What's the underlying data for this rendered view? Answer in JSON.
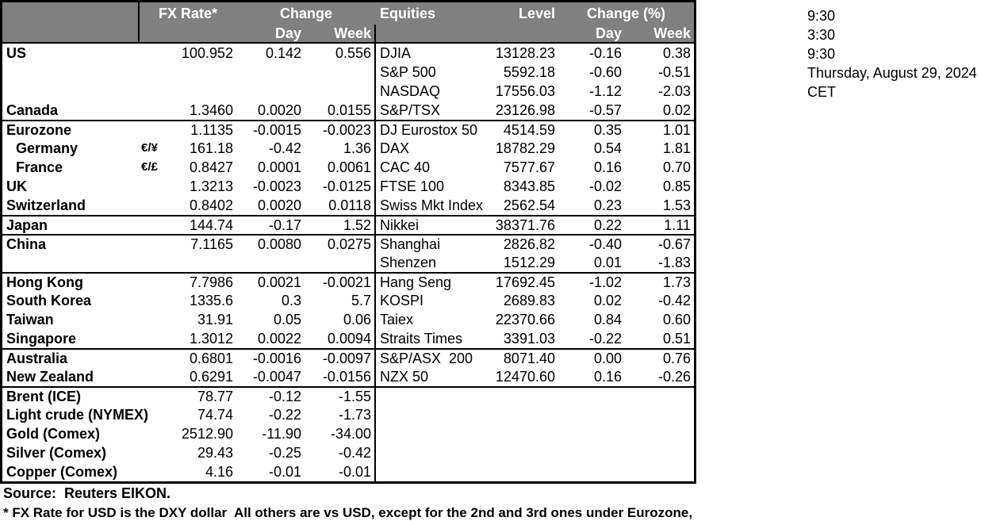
{
  "header": {
    "fx_rate": "FX Rate*",
    "change": "Change",
    "day": "Day",
    "week": "Week",
    "equities": "Equities",
    "level": "Level",
    "change_pct": "Change (%)"
  },
  "rows": [
    {
      "name": "US",
      "indent": false,
      "gs": false,
      "pair": "",
      "fx": "100.952",
      "fx_day": "0.142",
      "fx_week": "0.556",
      "eq": "DJIA",
      "level": "13128.23",
      "eq_day": "-0.16",
      "eq_week": "0.38"
    },
    {
      "name": "",
      "indent": false,
      "gs": false,
      "pair": "",
      "fx": "",
      "fx_day": "",
      "fx_week": "",
      "eq": "S&P 500",
      "level": "5592.18",
      "eq_day": "-0.60",
      "eq_week": "-0.51"
    },
    {
      "name": "",
      "indent": false,
      "gs": false,
      "pair": "",
      "fx": "",
      "fx_day": "",
      "fx_week": "",
      "eq": "NASDAQ",
      "level": "17556.03",
      "eq_day": "-1.12",
      "eq_week": "-2.03"
    },
    {
      "name": "Canada",
      "indent": false,
      "gs": false,
      "pair": "",
      "fx": "1.3460",
      "fx_day": "0.0020",
      "fx_week": "0.0155",
      "eq": "S&P/TSX",
      "level": "23126.98",
      "eq_day": "-0.57",
      "eq_week": "0.02"
    },
    {
      "name": "Eurozone",
      "indent": false,
      "gs": true,
      "pair": "",
      "fx": "1.1135",
      "fx_day": "-0.0015",
      "fx_week": "-0.0023",
      "eq": "DJ Eurostox 50",
      "level": "4514.59",
      "eq_day": "0.35",
      "eq_week": "1.01"
    },
    {
      "name": "Germany",
      "indent": true,
      "gs": false,
      "pair": "€/¥",
      "fx": "161.18",
      "fx_day": "-0.42",
      "fx_week": "1.36",
      "eq": "DAX",
      "level": "18782.29",
      "eq_day": "0.54",
      "eq_week": "1.81"
    },
    {
      "name": "France",
      "indent": true,
      "gs": false,
      "pair": "€/£",
      "fx": "0.8427",
      "fx_day": "0.0001",
      "fx_week": "0.0061",
      "eq": "CAC 40",
      "level": "7577.67",
      "eq_day": "0.16",
      "eq_week": "0.70"
    },
    {
      "name": "UK",
      "indent": false,
      "gs": false,
      "pair": "",
      "fx": "1.3213",
      "fx_day": "-0.0023",
      "fx_week": "-0.0125",
      "eq": "FTSE 100",
      "level": "8343.85",
      "eq_day": "-0.02",
      "eq_week": "0.85"
    },
    {
      "name": "Switzerland",
      "indent": false,
      "gs": false,
      "pair": "",
      "fx": "0.8402",
      "fx_day": "0.0020",
      "fx_week": "0.0118",
      "eq": "Swiss Mkt Index",
      "level": "2562.54",
      "eq_day": "0.23",
      "eq_week": "1.53"
    },
    {
      "name": "Japan",
      "indent": false,
      "gs": true,
      "pair": "",
      "fx": "144.74",
      "fx_day": "-0.17",
      "fx_week": "1.52",
      "eq": "Nikkei",
      "level": "38371.76",
      "eq_day": "0.22",
      "eq_week": "1.11"
    },
    {
      "name": "China",
      "indent": false,
      "gs": true,
      "pair": "",
      "fx": "7.1165",
      "fx_day": "0.0080",
      "fx_week": "0.0275",
      "eq": "Shanghai",
      "level": "2826.82",
      "eq_day": "-0.40",
      "eq_week": "-0.67"
    },
    {
      "name": "",
      "indent": false,
      "gs": false,
      "pair": "",
      "fx": "",
      "fx_day": "",
      "fx_week": "",
      "eq": "Shenzen",
      "level": "1512.29",
      "eq_day": "0.01",
      "eq_week": "-1.83"
    },
    {
      "name": "Hong Kong",
      "indent": false,
      "gs": true,
      "pair": "",
      "fx": "7.7986",
      "fx_day": "0.0021",
      "fx_week": "-0.0021",
      "eq": "Hang Seng",
      "level": "17692.45",
      "eq_day": "-1.02",
      "eq_week": "1.73"
    },
    {
      "name": "South Korea",
      "indent": false,
      "gs": false,
      "pair": "",
      "fx": "1335.6",
      "fx_day": "0.3",
      "fx_week": "5.7",
      "eq": "KOSPI",
      "level": "2689.83",
      "eq_day": "0.02",
      "eq_week": "-0.42"
    },
    {
      "name": "Taiwan",
      "indent": false,
      "gs": false,
      "pair": "",
      "fx": "31.91",
      "fx_day": "0.05",
      "fx_week": "0.06",
      "eq": "Taiex",
      "level": "22370.66",
      "eq_day": "0.84",
      "eq_week": "0.60"
    },
    {
      "name": "Singapore",
      "indent": false,
      "gs": false,
      "pair": "",
      "fx": "1.3012",
      "fx_day": "0.0022",
      "fx_week": "0.0094",
      "eq": "Straits Times",
      "level": "3391.03",
      "eq_day": "-0.22",
      "eq_week": "0.51"
    },
    {
      "name": "Australia",
      "indent": false,
      "gs": true,
      "pair": "",
      "fx": "0.6801",
      "fx_day": "-0.0016",
      "fx_week": "-0.0097",
      "eq": "S&P/ASX  200",
      "level": "8071.40",
      "eq_day": "0.00",
      "eq_week": "0.76"
    },
    {
      "name": "New Zealand",
      "indent": false,
      "gs": false,
      "pair": "",
      "fx": "0.6291",
      "fx_day": "-0.0047",
      "fx_week": "-0.0156",
      "eq": "NZX 50",
      "level": "12470.60",
      "eq_day": "0.16",
      "eq_week": "-0.26"
    },
    {
      "name": "Brent (ICE)",
      "indent": false,
      "gs": true,
      "pair": "",
      "fx": "78.77",
      "fx_day": "-0.12",
      "fx_week": "-1.55",
      "eq": "",
      "level": "",
      "eq_day": "",
      "eq_week": ""
    },
    {
      "name": "Light crude (NYMEX)",
      "indent": false,
      "gs": false,
      "pair": "",
      "fx": "74.74",
      "fx_day": "-0.22",
      "fx_week": "-1.73",
      "eq": "",
      "level": "",
      "eq_day": "",
      "eq_week": ""
    },
    {
      "name": "Gold (Comex)",
      "indent": false,
      "gs": false,
      "pair": "",
      "fx": "2512.90",
      "fx_day": "-11.90",
      "fx_week": "-34.00",
      "eq": "",
      "level": "",
      "eq_day": "",
      "eq_week": ""
    },
    {
      "name": "Silver (Comex)",
      "indent": false,
      "gs": false,
      "pair": "",
      "fx": "29.43",
      "fx_day": "-0.25",
      "fx_week": "-0.42",
      "eq": "",
      "level": "",
      "eq_day": "",
      "eq_week": ""
    },
    {
      "name": "Copper (Comex)",
      "indent": false,
      "gs": false,
      "pair": "",
      "fx": "4.16",
      "fx_day": "-0.01",
      "fx_week": "-0.01",
      "eq": "",
      "level": "",
      "eq_day": "",
      "eq_week": ""
    }
  ],
  "side_panel": {
    "lines": [
      "9:30",
      "3:30",
      "9:30",
      "Thursday, August 29, 2024",
      "CET"
    ]
  },
  "footer": {
    "source": "Source:  Reuters EIKON.",
    "footnote": "* FX Rate for USD is the DXY dollar  All others are vs USD, except for the 2nd and 3rd ones under Eurozone,"
  },
  "colors": {
    "header_bg": "#808080",
    "header_text": "#ffffff",
    "border": "#000000",
    "text": "#000000"
  }
}
